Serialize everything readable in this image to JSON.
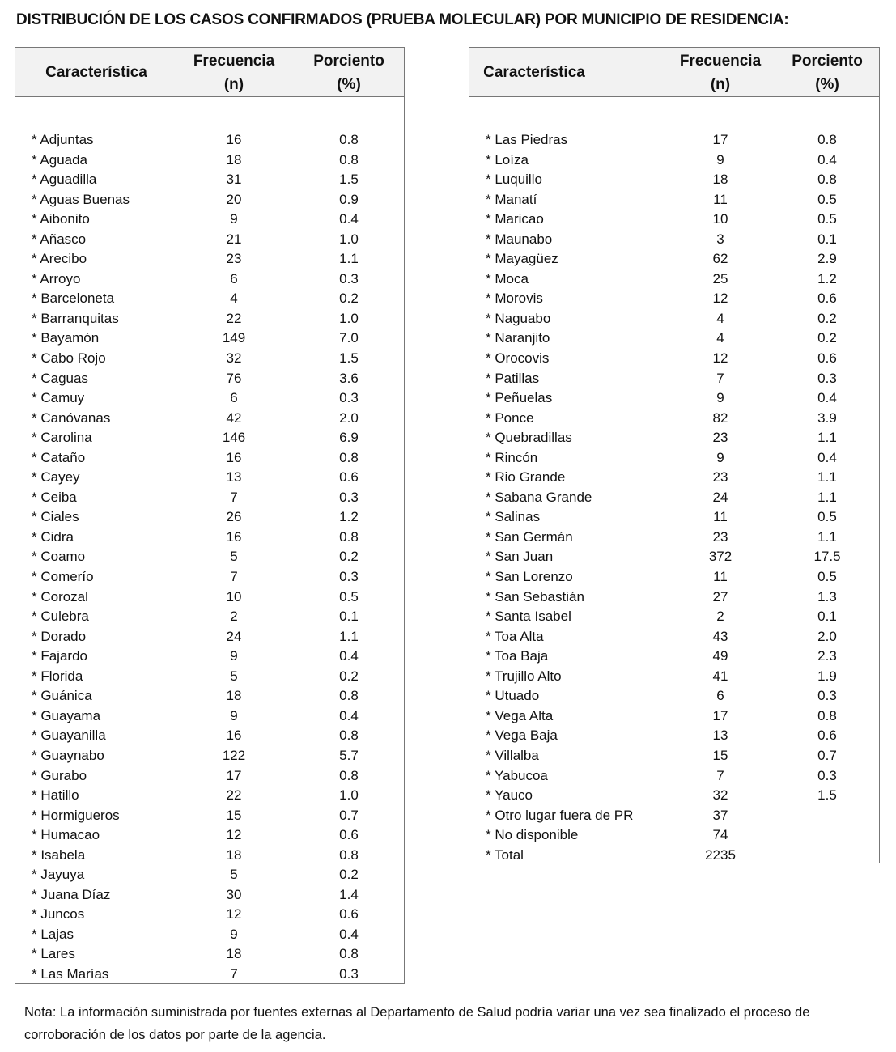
{
  "title": "DISTRIBUCIÓN DE LOS CASOS CONFIRMADOS (PRUEBA MOLECULAR) POR MUNICIPIO DE RESIDENCIA:",
  "headers": {
    "characteristic": "Característica",
    "frequency_line1": "Frecuencia",
    "frequency_line2": "(n)",
    "percent_line1": "Porciento",
    "percent_line2": "(%)"
  },
  "left_rows": [
    {
      "name": "* Adjuntas",
      "n": "16",
      "pct": "0.8"
    },
    {
      "name": "* Aguada",
      "n": "18",
      "pct": "0.8"
    },
    {
      "name": "* Aguadilla",
      "n": "31",
      "pct": "1.5"
    },
    {
      "name": "* Aguas Buenas",
      "n": "20",
      "pct": "0.9"
    },
    {
      "name": "* Aibonito",
      "n": "9",
      "pct": "0.4"
    },
    {
      "name": "* Añasco",
      "n": "21",
      "pct": "1.0"
    },
    {
      "name": "* Arecibo",
      "n": "23",
      "pct": "1.1"
    },
    {
      "name": "* Arroyo",
      "n": "6",
      "pct": "0.3"
    },
    {
      "name": "* Barceloneta",
      "n": "4",
      "pct": "0.2"
    },
    {
      "name": "* Barranquitas",
      "n": "22",
      "pct": "1.0"
    },
    {
      "name": "* Bayamón",
      "n": "149",
      "pct": "7.0"
    },
    {
      "name": "* Cabo Rojo",
      "n": "32",
      "pct": "1.5"
    },
    {
      "name": "* Caguas",
      "n": "76",
      "pct": "3.6"
    },
    {
      "name": "* Camuy",
      "n": "6",
      "pct": "0.3"
    },
    {
      "name": "* Canóvanas",
      "n": "42",
      "pct": "2.0"
    },
    {
      "name": "* Carolina",
      "n": "146",
      "pct": "6.9"
    },
    {
      "name": "* Cataño",
      "n": "16",
      "pct": "0.8"
    },
    {
      "name": "* Cayey",
      "n": "13",
      "pct": "0.6"
    },
    {
      "name": "* Ceiba",
      "n": "7",
      "pct": "0.3"
    },
    {
      "name": "* Ciales",
      "n": "26",
      "pct": "1.2"
    },
    {
      "name": "* Cidra",
      "n": "16",
      "pct": "0.8"
    },
    {
      "name": "* Coamo",
      "n": "5",
      "pct": "0.2"
    },
    {
      "name": "* Comerío",
      "n": "7",
      "pct": "0.3"
    },
    {
      "name": "* Corozal",
      "n": "10",
      "pct": "0.5"
    },
    {
      "name": "* Culebra",
      "n": "2",
      "pct": "0.1"
    },
    {
      "name": "* Dorado",
      "n": "24",
      "pct": "1.1"
    },
    {
      "name": "* Fajardo",
      "n": "9",
      "pct": "0.4"
    },
    {
      "name": "* Florida",
      "n": "5",
      "pct": "0.2"
    },
    {
      "name": "* Guánica",
      "n": "18",
      "pct": "0.8"
    },
    {
      "name": "* Guayama",
      "n": "9",
      "pct": "0.4"
    },
    {
      "name": "* Guayanilla",
      "n": "16",
      "pct": "0.8"
    },
    {
      "name": "* Guaynabo",
      "n": "122",
      "pct": "5.7"
    },
    {
      "name": "* Gurabo",
      "n": "17",
      "pct": "0.8"
    },
    {
      "name": "* Hatillo",
      "n": "22",
      "pct": "1.0"
    },
    {
      "name": "* Hormigueros",
      "n": "15",
      "pct": "0.7"
    },
    {
      "name": "* Humacao",
      "n": "12",
      "pct": "0.6"
    },
    {
      "name": "* Isabela",
      "n": "18",
      "pct": "0.8"
    },
    {
      "name": "* Jayuya",
      "n": "5",
      "pct": "0.2"
    },
    {
      "name": "* Juana Díaz",
      "n": "30",
      "pct": "1.4"
    },
    {
      "name": "* Juncos",
      "n": "12",
      "pct": "0.6"
    },
    {
      "name": "* Lajas",
      "n": "9",
      "pct": "0.4"
    },
    {
      "name": "* Lares",
      "n": "18",
      "pct": "0.8"
    },
    {
      "name": "* Las Marías",
      "n": "7",
      "pct": "0.3"
    }
  ],
  "right_rows": [
    {
      "name": "* Las Piedras",
      "n": "17",
      "pct": "0.8"
    },
    {
      "name": "* Loíza",
      "n": "9",
      "pct": "0.4"
    },
    {
      "name": "* Luquillo",
      "n": "18",
      "pct": "0.8"
    },
    {
      "name": "* Manatí",
      "n": "11",
      "pct": "0.5"
    },
    {
      "name": "* Maricao",
      "n": "10",
      "pct": "0.5"
    },
    {
      "name": "* Maunabo",
      "n": "3",
      "pct": "0.1"
    },
    {
      "name": "* Mayagüez",
      "n": "62",
      "pct": "2.9"
    },
    {
      "name": "* Moca",
      "n": "25",
      "pct": "1.2"
    },
    {
      "name": "* Morovis",
      "n": "12",
      "pct": "0.6"
    },
    {
      "name": "* Naguabo",
      "n": "4",
      "pct": "0.2"
    },
    {
      "name": "* Naranjito",
      "n": "4",
      "pct": "0.2"
    },
    {
      "name": "* Orocovis",
      "n": "12",
      "pct": "0.6"
    },
    {
      "name": "* Patillas",
      "n": "7",
      "pct": "0.3"
    },
    {
      "name": "* Peñuelas",
      "n": "9",
      "pct": "0.4"
    },
    {
      "name": "* Ponce",
      "n": "82",
      "pct": "3.9"
    },
    {
      "name": "* Quebradillas",
      "n": "23",
      "pct": "1.1"
    },
    {
      "name": "* Rincón",
      "n": "9",
      "pct": "0.4"
    },
    {
      "name": "* Rio Grande",
      "n": "23",
      "pct": "1.1"
    },
    {
      "name": "* Sabana Grande",
      "n": "24",
      "pct": "1.1"
    },
    {
      "name": "* Salinas",
      "n": "11",
      "pct": "0.5"
    },
    {
      "name": "* San Germán",
      "n": "23",
      "pct": "1.1"
    },
    {
      "name": "* San Juan",
      "n": "372",
      "pct": "17.5"
    },
    {
      "name": "* San Lorenzo",
      "n": "11",
      "pct": "0.5"
    },
    {
      "name": "* San Sebastián",
      "n": "27",
      "pct": "1.3"
    },
    {
      "name": "* Santa Isabel",
      "n": "2",
      "pct": "0.1"
    },
    {
      "name": "* Toa Alta",
      "n": "43",
      "pct": "2.0"
    },
    {
      "name": "* Toa Baja",
      "n": "49",
      "pct": "2.3"
    },
    {
      "name": "* Trujillo Alto",
      "n": "41",
      "pct": "1.9"
    },
    {
      "name": "* Utuado",
      "n": "6",
      "pct": "0.3"
    },
    {
      "name": "* Vega Alta",
      "n": "17",
      "pct": "0.8"
    },
    {
      "name": "* Vega Baja",
      "n": "13",
      "pct": "0.6"
    },
    {
      "name": "* Villalba",
      "n": "15",
      "pct": "0.7"
    },
    {
      "name": "* Yabucoa",
      "n": "7",
      "pct": "0.3"
    },
    {
      "name": "* Yauco",
      "n": "32",
      "pct": "1.5"
    },
    {
      "name": "* Otro lugar fuera de PR",
      "n": "37",
      "pct": ""
    },
    {
      "name": "* No disponible",
      "n": "74",
      "pct": ""
    },
    {
      "name": "* Total",
      "n": "2235",
      "pct": ""
    }
  ],
  "note": "Nota: La información suministrada por fuentes externas al Departamento de Salud podría variar una vez sea finalizado el proceso de corroboración de los datos por parte de la agencia."
}
